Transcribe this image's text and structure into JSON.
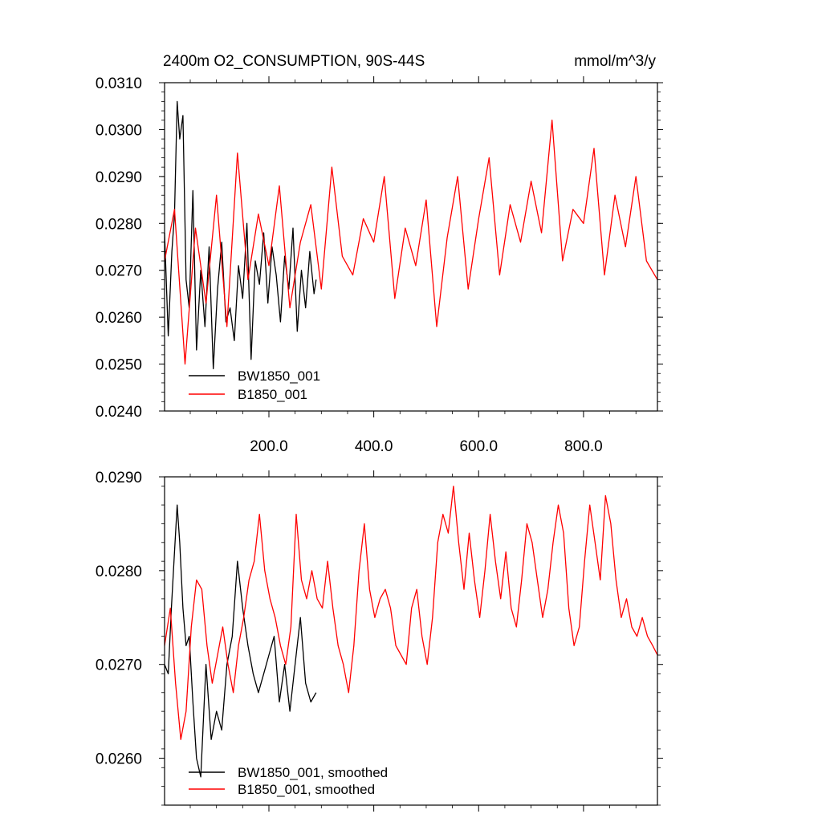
{
  "chart_data": [
    {
      "type": "line",
      "title": "2400m O2_CONSUMPTION, 90S-44S",
      "units": "mmol/m^3/y",
      "xlim": [
        1,
        941
      ],
      "ylim": [
        0.024,
        0.031
      ],
      "x_ticks": [
        200,
        400,
        600,
        800
      ],
      "x_tick_labels": [
        "200.0",
        "400.0",
        "600.0",
        "800.0"
      ],
      "y_ticks": [
        0.024,
        0.025,
        0.026,
        0.027,
        0.028,
        0.029,
        0.03,
        0.031
      ],
      "y_tick_labels": [
        "0.0240",
        "0.0250",
        "0.0260",
        "0.0270",
        "0.0280",
        "0.0290",
        "0.0300",
        "0.0310"
      ],
      "legend_position": "bottom-left",
      "series": [
        {
          "name": "BW1850_001",
          "color": "#000000",
          "x": [
            1,
            8,
            15,
            20,
            25,
            30,
            36,
            42,
            48,
            55,
            62,
            70,
            78,
            86,
            94,
            102,
            110,
            118,
            126,
            134,
            142,
            150,
            158,
            166,
            174,
            182,
            190,
            198,
            206,
            214,
            222,
            230,
            238,
            246,
            254,
            262,
            270,
            278,
            286,
            290
          ],
          "values": [
            0.0278,
            0.0256,
            0.0274,
            0.0282,
            0.0306,
            0.0298,
            0.0303,
            0.0268,
            0.0262,
            0.0287,
            0.0253,
            0.027,
            0.0258,
            0.0275,
            0.0249,
            0.0266,
            0.0276,
            0.0259,
            0.0262,
            0.0255,
            0.0271,
            0.0264,
            0.028,
            0.0251,
            0.0272,
            0.0267,
            0.0278,
            0.0263,
            0.0275,
            0.0269,
            0.0259,
            0.0273,
            0.0266,
            0.0279,
            0.0257,
            0.027,
            0.0262,
            0.0274,
            0.0265,
            0.0268
          ]
        },
        {
          "name": "B1850_001",
          "color": "#ff0000",
          "x": [
            1,
            20,
            40,
            60,
            80,
            100,
            120,
            140,
            160,
            180,
            200,
            220,
            240,
            260,
            280,
            300,
            320,
            340,
            360,
            380,
            400,
            420,
            440,
            460,
            480,
            500,
            520,
            540,
            560,
            580,
            600,
            620,
            640,
            660,
            680,
            700,
            720,
            740,
            760,
            780,
            800,
            820,
            840,
            860,
            880,
            900,
            920,
            941
          ],
          "values": [
            0.0272,
            0.0283,
            0.025,
            0.0279,
            0.0263,
            0.0286,
            0.0258,
            0.0295,
            0.0268,
            0.0282,
            0.0271,
            0.0288,
            0.0262,
            0.0276,
            0.0284,
            0.0266,
            0.0292,
            0.0273,
            0.0269,
            0.0281,
            0.0276,
            0.029,
            0.0264,
            0.0279,
            0.0271,
            0.0285,
            0.0258,
            0.0277,
            0.029,
            0.0266,
            0.0281,
            0.0294,
            0.0269,
            0.0284,
            0.0276,
            0.0289,
            0.0278,
            0.0302,
            0.0272,
            0.0283,
            0.028,
            0.0296,
            0.0269,
            0.0286,
            0.0275,
            0.029,
            0.0272,
            0.0268
          ]
        }
      ]
    },
    {
      "type": "line",
      "title": "",
      "xlim": [
        1,
        941
      ],
      "ylim": [
        0.0255,
        0.029
      ],
      "x_ticks": [
        200,
        400,
        600,
        800
      ],
      "x_tick_labels": [],
      "y_ticks": [
        0.026,
        0.027,
        0.028,
        0.029
      ],
      "y_tick_labels": [
        "0.0260",
        "0.0270",
        "0.0280",
        "0.0290"
      ],
      "legend_position": "bottom-left",
      "series": [
        {
          "name": "BW1850_001, smoothed",
          "color": "#000000",
          "x": [
            1,
            8,
            14,
            20,
            25,
            30,
            36,
            42,
            48,
            55,
            62,
            70,
            80,
            90,
            100,
            110,
            120,
            130,
            140,
            150,
            160,
            170,
            180,
            190,
            200,
            210,
            220,
            230,
            240,
            250,
            260,
            270,
            280,
            290
          ],
          "values": [
            0.027,
            0.0269,
            0.0276,
            0.0282,
            0.0287,
            0.0283,
            0.0276,
            0.0272,
            0.0273,
            0.0266,
            0.026,
            0.0258,
            0.027,
            0.0262,
            0.0265,
            0.0263,
            0.027,
            0.0273,
            0.0281,
            0.0276,
            0.0272,
            0.0269,
            0.0267,
            0.0269,
            0.0271,
            0.0273,
            0.0266,
            0.027,
            0.0265,
            0.027,
            0.0275,
            0.0268,
            0.0266,
            0.0267
          ]
        },
        {
          "name": "B1850_001, smoothed",
          "color": "#ff0000",
          "x": [
            1,
            12,
            22,
            32,
            42,
            52,
            62,
            72,
            82,
            92,
            102,
            112,
            122,
            132,
            142,
            152,
            162,
            172,
            182,
            192,
            202,
            212,
            222,
            232,
            242,
            252,
            262,
            272,
            282,
            292,
            302,
            312,
            322,
            332,
            342,
            352,
            362,
            372,
            382,
            392,
            402,
            412,
            422,
            432,
            442,
            452,
            462,
            472,
            482,
            492,
            502,
            512,
            522,
            532,
            542,
            552,
            562,
            572,
            582,
            592,
            602,
            612,
            622,
            632,
            642,
            652,
            662,
            672,
            682,
            692,
            702,
            712,
            722,
            732,
            742,
            752,
            762,
            772,
            782,
            792,
            802,
            812,
            822,
            832,
            842,
            852,
            862,
            872,
            882,
            892,
            902,
            912,
            922,
            932,
            941
          ],
          "values": [
            0.0272,
            0.0276,
            0.0268,
            0.0262,
            0.0265,
            0.0274,
            0.0279,
            0.0278,
            0.0272,
            0.0268,
            0.0271,
            0.0274,
            0.027,
            0.0267,
            0.0272,
            0.0275,
            0.0279,
            0.0281,
            0.0286,
            0.028,
            0.0277,
            0.0275,
            0.0272,
            0.027,
            0.0274,
            0.0286,
            0.0279,
            0.0277,
            0.028,
            0.0277,
            0.0276,
            0.0281,
            0.0276,
            0.0272,
            0.027,
            0.0267,
            0.0272,
            0.028,
            0.0285,
            0.0278,
            0.0275,
            0.0277,
            0.0278,
            0.0276,
            0.0272,
            0.0271,
            0.027,
            0.0276,
            0.0278,
            0.0273,
            0.027,
            0.0275,
            0.0283,
            0.0286,
            0.0284,
            0.0289,
            0.0283,
            0.0278,
            0.0284,
            0.0279,
            0.0275,
            0.028,
            0.0286,
            0.0281,
            0.0277,
            0.0282,
            0.0276,
            0.0274,
            0.0279,
            0.0285,
            0.0283,
            0.0279,
            0.0275,
            0.0278,
            0.0283,
            0.0287,
            0.0284,
            0.0276,
            0.0272,
            0.0274,
            0.0281,
            0.0287,
            0.0283,
            0.0279,
            0.0288,
            0.0285,
            0.0279,
            0.0275,
            0.0277,
            0.0274,
            0.0273,
            0.0275,
            0.0273,
            0.0272,
            0.0271
          ]
        }
      ]
    }
  ]
}
